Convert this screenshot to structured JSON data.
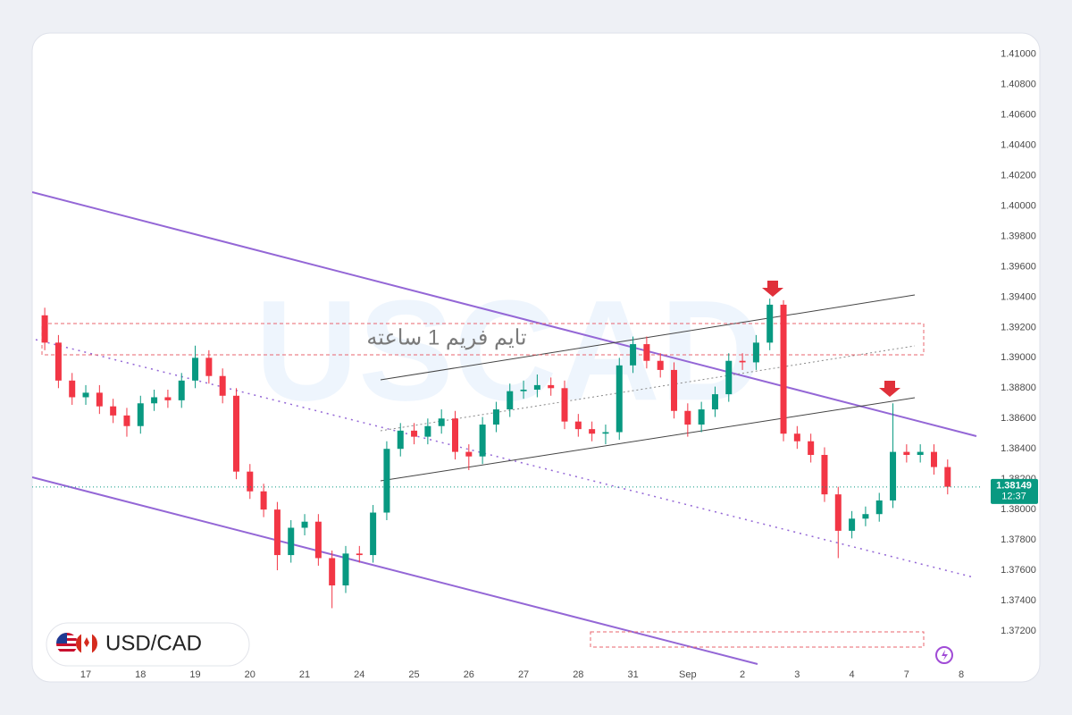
{
  "chart_data": {
    "type": "candlestick",
    "symbol": "USD/CAD",
    "watermark": "USCAD",
    "annotation": "تایم فریم 1 ساعته",
    "last_price": 1.38149,
    "countdown": "12:37",
    "up_color": "#089981",
    "down_color": "#f23645",
    "xlim": [
      -0.98,
      16.39
    ],
    "ylim": [
      1.3697,
      1.4114
    ],
    "xticks": [
      {
        "value": 0,
        "label": "17"
      },
      {
        "value": 1,
        "label": "18"
      },
      {
        "value": 2,
        "label": "19"
      },
      {
        "value": 3,
        "label": "20"
      },
      {
        "value": 4,
        "label": "21"
      },
      {
        "value": 5,
        "label": "24"
      },
      {
        "value": 6,
        "label": "25"
      },
      {
        "value": 7,
        "label": "26"
      },
      {
        "value": 8,
        "label": "27"
      },
      {
        "value": 9,
        "label": "28"
      },
      {
        "value": 10,
        "label": "31"
      },
      {
        "value": 11,
        "label": "Sep"
      },
      {
        "value": 12,
        "label": "2"
      },
      {
        "value": 13,
        "label": "3"
      },
      {
        "value": 14,
        "label": "4"
      },
      {
        "value": 15,
        "label": "7"
      },
      {
        "value": 16,
        "label": "8"
      }
    ],
    "yticks": [
      {
        "value": 1.372,
        "label": "1.37200"
      },
      {
        "value": 1.374,
        "label": "1.37400"
      },
      {
        "value": 1.376,
        "label": "1.37600"
      },
      {
        "value": 1.378,
        "label": "1.37800"
      },
      {
        "value": 1.38,
        "label": "1.38000"
      },
      {
        "value": 1.382,
        "label": "1.38200"
      },
      {
        "value": 1.384,
        "label": "1.38400"
      },
      {
        "value": 1.386,
        "label": "1.38600"
      },
      {
        "value": 1.388,
        "label": "1.38800"
      },
      {
        "value": 1.39,
        "label": "1.39000"
      },
      {
        "value": 1.392,
        "label": "1.39200"
      },
      {
        "value": 1.394,
        "label": "1.39400"
      },
      {
        "value": 1.396,
        "label": "1.39600"
      },
      {
        "value": 1.398,
        "label": "1.39800"
      },
      {
        "value": 1.4,
        "label": "1.40000"
      },
      {
        "value": 1.402,
        "label": "1.40200"
      },
      {
        "value": 1.404,
        "label": "1.40400"
      },
      {
        "value": 1.406,
        "label": "1.40600"
      },
      {
        "value": 1.408,
        "label": "1.40800"
      },
      {
        "value": 1.41,
        "label": "1.41000"
      }
    ],
    "x": [
      -0.75,
      -0.5,
      -0.25,
      0,
      0.25,
      0.5,
      0.75,
      1,
      1.25,
      1.5,
      1.75,
      2,
      2.25,
      2.5,
      2.75,
      3,
      3.25,
      3.5,
      3.75,
      4,
      4.25,
      4.5,
      4.75,
      5,
      5.25,
      5.5,
      5.75,
      6,
      6.25,
      6.5,
      6.75,
      7,
      7.25,
      7.5,
      7.75,
      8,
      8.25,
      8.5,
      8.75,
      9,
      9.25,
      9.5,
      9.75,
      10,
      10.25,
      10.5,
      10.75,
      11,
      11.25,
      11.5,
      11.75,
      12,
      12.25,
      12.5,
      12.75,
      13,
      13.25,
      13.5,
      13.75,
      14,
      14.25,
      14.5,
      14.75,
      15,
      15.25,
      15.5,
      15.75
    ],
    "open": [
      1.3928,
      1.391,
      1.3885,
      1.3874,
      1.3877,
      1.3868,
      1.3862,
      1.3855,
      1.387,
      1.3874,
      1.3872,
      1.3885,
      1.39,
      1.3888,
      1.3875,
      1.3825,
      1.3812,
      1.38,
      1.377,
      1.3788,
      1.3792,
      1.3768,
      1.375,
      1.3771,
      1.377,
      1.3798,
      1.384,
      1.3852,
      1.3848,
      1.3855,
      1.386,
      1.3838,
      1.3835,
      1.3856,
      1.3866,
      1.3878,
      1.3879,
      1.3882,
      1.388,
      1.3858,
      1.3853,
      1.385,
      1.3851,
      1.3895,
      1.3909,
      1.3898,
      1.3892,
      1.3865,
      1.3856,
      1.3866,
      1.3876,
      1.3898,
      1.3897,
      1.391,
      1.3935,
      1.385,
      1.3845,
      1.3836,
      1.381,
      1.3786,
      1.3794,
      1.3797,
      1.3806,
      1.3838,
      1.3836,
      1.3838,
      1.3828
    ],
    "high": [
      1.3933,
      1.3915,
      1.389,
      1.3882,
      1.3882,
      1.3873,
      1.3867,
      1.3875,
      1.3879,
      1.3879,
      1.389,
      1.3908,
      1.3905,
      1.3893,
      1.388,
      1.383,
      1.3817,
      1.3805,
      1.3793,
      1.3797,
      1.3797,
      1.3773,
      1.3776,
      1.3776,
      1.3803,
      1.3845,
      1.3857,
      1.3857,
      1.386,
      1.3866,
      1.3865,
      1.3843,
      1.3861,
      1.3871,
      1.3883,
      1.3885,
      1.3889,
      1.3887,
      1.3885,
      1.3863,
      1.3858,
      1.3856,
      1.39,
      1.3914,
      1.3914,
      1.3903,
      1.3897,
      1.387,
      1.3871,
      1.3881,
      1.3903,
      1.3903,
      1.3915,
      1.3939,
      1.3938,
      1.3855,
      1.385,
      1.3841,
      1.3815,
      1.3799,
      1.3802,
      1.3811,
      1.387,
      1.3843,
      1.3843,
      1.3843,
      1.3833
    ],
    "low": [
      1.3905,
      1.388,
      1.3869,
      1.3869,
      1.3863,
      1.3857,
      1.3848,
      1.385,
      1.3865,
      1.3867,
      1.3867,
      1.388,
      1.3883,
      1.387,
      1.382,
      1.3807,
      1.3795,
      1.376,
      1.3765,
      1.3783,
      1.3763,
      1.3735,
      1.3745,
      1.3765,
      1.3765,
      1.3793,
      1.3835,
      1.3843,
      1.3843,
      1.385,
      1.3833,
      1.3826,
      1.383,
      1.3851,
      1.3861,
      1.3873,
      1.3874,
      1.3875,
      1.3853,
      1.3848,
      1.3845,
      1.3843,
      1.3846,
      1.389,
      1.3893,
      1.3887,
      1.386,
      1.3848,
      1.3851,
      1.3861,
      1.3871,
      1.3892,
      1.3892,
      1.3905,
      1.3845,
      1.384,
      1.3831,
      1.3805,
      1.3768,
      1.3781,
      1.3789,
      1.3792,
      1.3801,
      1.3831,
      1.3831,
      1.3823,
      1.381
    ],
    "close": [
      1.391,
      1.3885,
      1.3874,
      1.3877,
      1.3868,
      1.3862,
      1.3855,
      1.387,
      1.3874,
      1.3872,
      1.3885,
      1.39,
      1.3888,
      1.3875,
      1.3825,
      1.3812,
      1.38,
      1.377,
      1.3788,
      1.3792,
      1.3768,
      1.375,
      1.3771,
      1.377,
      1.3798,
      1.384,
      1.3852,
      1.3848,
      1.3855,
      1.386,
      1.3838,
      1.3835,
      1.3856,
      1.3866,
      1.3878,
      1.3879,
      1.3882,
      1.388,
      1.3858,
      1.3853,
      1.385,
      1.3851,
      1.3895,
      1.3909,
      1.3898,
      1.3892,
      1.3865,
      1.3856,
      1.3866,
      1.3876,
      1.3898,
      1.3897,
      1.391,
      1.3935,
      1.385,
      1.3845,
      1.3836,
      1.381,
      1.3786,
      1.3794,
      1.3797,
      1.3806,
      1.3838,
      1.3836,
      1.3838,
      1.3828,
      1.3815
    ]
  }
}
